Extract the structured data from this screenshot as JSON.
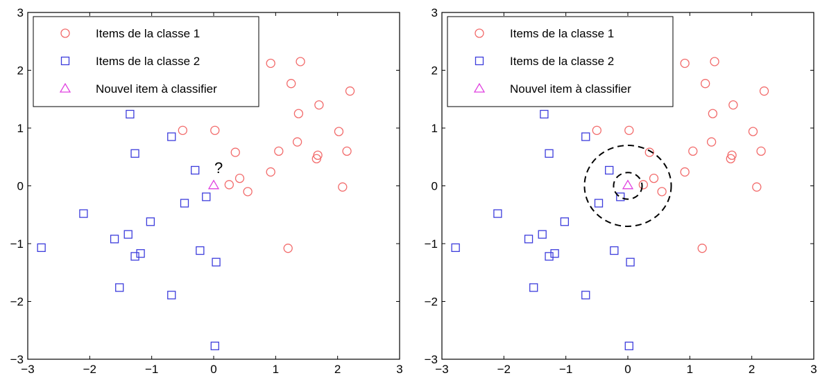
{
  "colors": {
    "class1": "#f26a6a",
    "class2": "#3c3cdc",
    "query": "#e040e0",
    "axis": "#000000"
  },
  "chart_data": [
    {
      "type": "scatter",
      "title": "",
      "xlabel": "",
      "ylabel": "",
      "xlim": [
        -3,
        3
      ],
      "ylim": [
        -3,
        3
      ],
      "xticks": [
        -3,
        -2,
        -1,
        0,
        1,
        2,
        3
      ],
      "yticks": [
        -3,
        -2,
        -1,
        0,
        1,
        2,
        3
      ],
      "legend_position": "top-left",
      "series": [
        {
          "name": "Items de la classe 1",
          "marker": "circle",
          "points": [
            [
              -0.5,
              0.96
            ],
            [
              0.02,
              0.96
            ],
            [
              0.35,
              0.58
            ],
            [
              0.25,
              0.02
            ],
            [
              0.42,
              0.13
            ],
            [
              0.55,
              -0.1
            ],
            [
              0.92,
              2.12
            ],
            [
              1.4,
              2.15
            ],
            [
              1.25,
              1.77
            ],
            [
              1.37,
              1.25
            ],
            [
              1.35,
              0.76
            ],
            [
              1.05,
              0.6
            ],
            [
              0.92,
              0.24
            ],
            [
              1.7,
              1.4
            ],
            [
              2.2,
              1.64
            ],
            [
              2.02,
              0.94
            ],
            [
              1.68,
              0.53
            ],
            [
              1.66,
              0.47
            ],
            [
              2.15,
              0.6
            ],
            [
              2.08,
              -0.02
            ],
            [
              1.2,
              -1.08
            ]
          ]
        },
        {
          "name": "Items de la classe 2",
          "marker": "square",
          "points": [
            [
              -1.35,
              1.24
            ],
            [
              -1.27,
              0.56
            ],
            [
              -0.68,
              0.85
            ],
            [
              -0.3,
              0.27
            ],
            [
              -0.47,
              -0.3
            ],
            [
              -0.12,
              -0.19
            ],
            [
              -2.1,
              -0.48
            ],
            [
              -1.02,
              -0.62
            ],
            [
              -1.38,
              -0.84
            ],
            [
              -1.6,
              -0.92
            ],
            [
              -1.18,
              -1.17
            ],
            [
              -1.27,
              -1.22
            ],
            [
              -0.22,
              -1.12
            ],
            [
              0.04,
              -1.32
            ],
            [
              -2.78,
              -1.07
            ],
            [
              -1.52,
              -1.76
            ],
            [
              -0.68,
              -1.89
            ],
            [
              0.02,
              -2.77
            ]
          ]
        },
        {
          "name": "Nouvel item à classifier",
          "marker": "triangle",
          "points": [
            [
              0.0,
              0.01
            ]
          ]
        }
      ],
      "annotations": [
        {
          "text": "?",
          "x": 0.08,
          "y": 0.22
        }
      ]
    },
    {
      "type": "scatter",
      "title": "",
      "xlabel": "",
      "ylabel": "",
      "xlim": [
        -3,
        3
      ],
      "ylim": [
        -3,
        3
      ],
      "xticks": [
        -3,
        -2,
        -1,
        0,
        1,
        2,
        3
      ],
      "yticks": [
        -3,
        -2,
        -1,
        0,
        1,
        2,
        3
      ],
      "legend_position": "top-left",
      "series": [
        {
          "name": "Items de la classe 1",
          "marker": "circle",
          "points": [
            [
              -0.5,
              0.96
            ],
            [
              0.02,
              0.96
            ],
            [
              0.35,
              0.58
            ],
            [
              0.25,
              0.02
            ],
            [
              0.42,
              0.13
            ],
            [
              0.55,
              -0.1
            ],
            [
              0.92,
              2.12
            ],
            [
              1.4,
              2.15
            ],
            [
              1.25,
              1.77
            ],
            [
              1.37,
              1.25
            ],
            [
              1.35,
              0.76
            ],
            [
              1.05,
              0.6
            ],
            [
              0.92,
              0.24
            ],
            [
              1.7,
              1.4
            ],
            [
              2.2,
              1.64
            ],
            [
              2.02,
              0.94
            ],
            [
              1.68,
              0.53
            ],
            [
              1.66,
              0.47
            ],
            [
              2.15,
              0.6
            ],
            [
              2.08,
              -0.02
            ],
            [
              1.2,
              -1.08
            ]
          ]
        },
        {
          "name": "Items de la classe 2",
          "marker": "square",
          "points": [
            [
              -1.35,
              1.24
            ],
            [
              -1.27,
              0.56
            ],
            [
              -0.68,
              0.85
            ],
            [
              -0.3,
              0.27
            ],
            [
              -0.47,
              -0.3
            ],
            [
              -0.12,
              -0.19
            ],
            [
              -2.1,
              -0.48
            ],
            [
              -1.02,
              -0.62
            ],
            [
              -1.38,
              -0.84
            ],
            [
              -1.6,
              -0.92
            ],
            [
              -1.18,
              -1.17
            ],
            [
              -1.27,
              -1.22
            ],
            [
              -0.22,
              -1.12
            ],
            [
              0.04,
              -1.32
            ],
            [
              -2.78,
              -1.07
            ],
            [
              -1.52,
              -1.76
            ],
            [
              -0.68,
              -1.89
            ],
            [
              0.02,
              -2.77
            ]
          ]
        },
        {
          "name": "Nouvel item à classifier",
          "marker": "triangle",
          "points": [
            [
              0.0,
              0.01
            ]
          ]
        }
      ],
      "circles": [
        {
          "center": [
            0.0,
            0.0
          ],
          "radius": 0.23,
          "style": "dashed"
        },
        {
          "center": [
            0.0,
            0.0
          ],
          "radius": 0.7,
          "style": "dashed"
        }
      ]
    }
  ]
}
